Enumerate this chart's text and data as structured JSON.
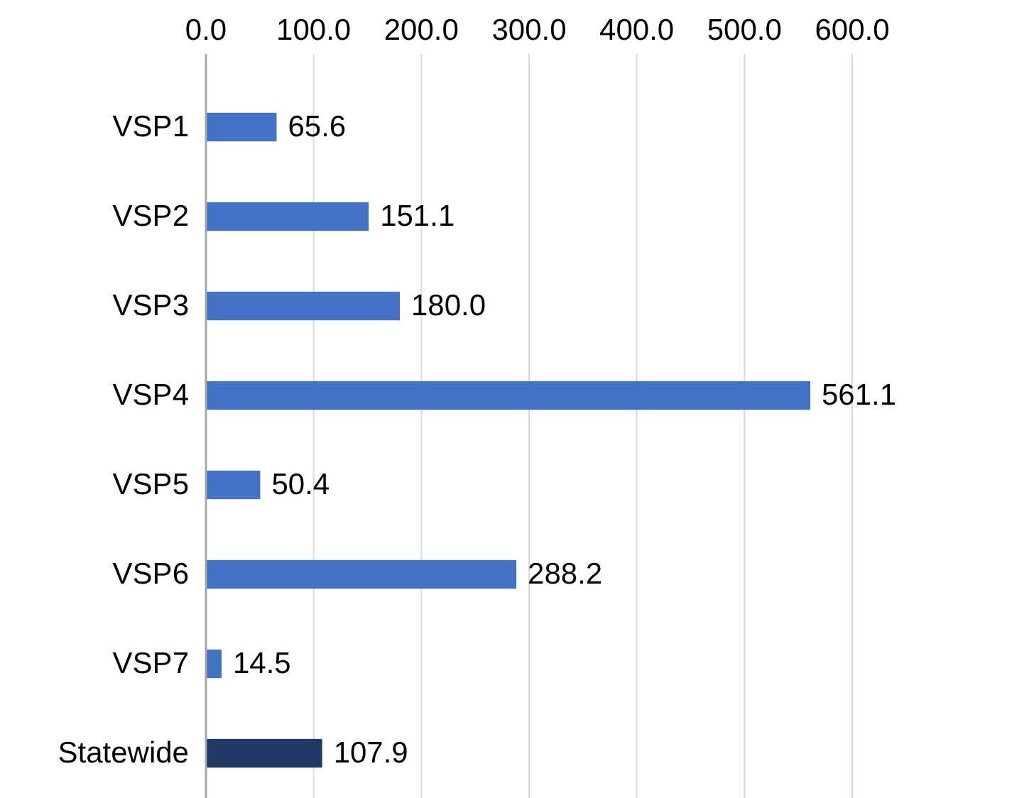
{
  "chart_data": {
    "type": "bar",
    "orientation": "horizontal",
    "categories": [
      "VSP1",
      "VSP2",
      "VSP3",
      "VSP4",
      "VSP5",
      "VSP6",
      "VSP7",
      "Statewide"
    ],
    "values": [
      65.6,
      151.1,
      180.0,
      561.1,
      50.4,
      288.2,
      14.5,
      107.9
    ],
    "colors": [
      "#4472c4",
      "#4472c4",
      "#4472c4",
      "#4472c4",
      "#4472c4",
      "#4472c4",
      "#4472c4",
      "#1f3864"
    ],
    "xlim": [
      0,
      600
    ],
    "xticks": [
      {
        "value": 0,
        "label": "0.0"
      },
      {
        "value": 100,
        "label": "100.0"
      },
      {
        "value": 200,
        "label": "200.0"
      },
      {
        "value": 300,
        "label": "300.0"
      },
      {
        "value": 400,
        "label": "400.0"
      },
      {
        "value": 500,
        "label": "500.0"
      },
      {
        "value": 600,
        "label": "600.0"
      }
    ],
    "value_labels": [
      "65.6",
      "151.1",
      "180.0",
      "561.1",
      "50.4",
      "288.2",
      "14.5",
      "107.9"
    ],
    "grid": "x"
  }
}
